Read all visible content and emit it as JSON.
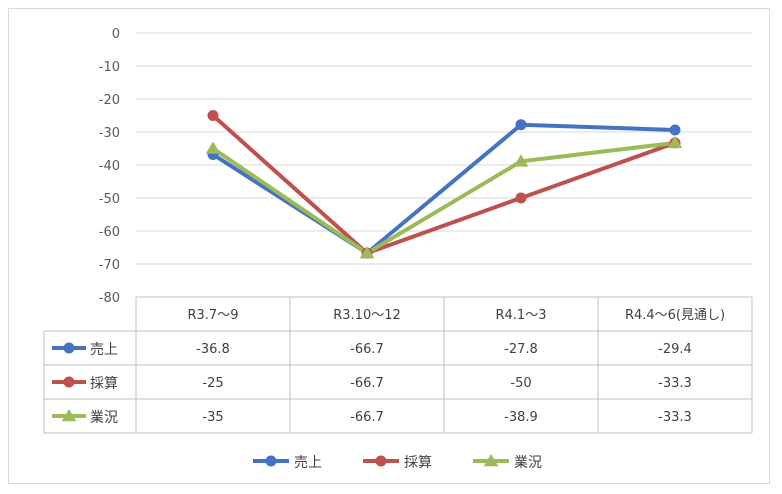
{
  "chart_data": {
    "type": "line",
    "categories": [
      "R3.7～9",
      "R3.10～12",
      "R4.1～3",
      "R4.4～6(見通し)"
    ],
    "ylim": [
      -80,
      0
    ],
    "yticks": [
      0,
      -10,
      -20,
      -30,
      -40,
      -50,
      -60,
      -70,
      -80
    ],
    "series": [
      {
        "name": "売上",
        "values": [
          -36.8,
          -66.7,
          -27.8,
          -29.4
        ],
        "color": "#4472C4",
        "marker": "circle"
      },
      {
        "name": "採算",
        "values": [
          -25,
          -66.7,
          -50,
          -33.3
        ],
        "color": "#C0504D",
        "marker": "circle"
      },
      {
        "name": "業況",
        "values": [
          -35,
          -66.7,
          -38.9,
          -33.3
        ],
        "color": "#9BBB59",
        "marker": "triangle"
      }
    ],
    "grid": true,
    "legend": "bottom",
    "data_table": true
  }
}
